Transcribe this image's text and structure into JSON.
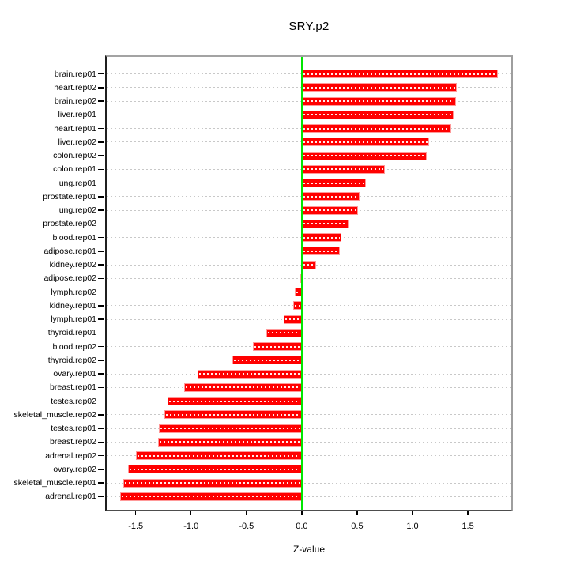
{
  "chart_data": {
    "type": "bar",
    "orientation": "horizontal",
    "title": "SRY.p2",
    "xlabel": "Z-value",
    "ylabel": "",
    "legend": "none",
    "grid": "horizontal-dotted",
    "categories": [
      "brain.rep01",
      "heart.rep02",
      "brain.rep02",
      "liver.rep01",
      "heart.rep01",
      "liver.rep02",
      "colon.rep02",
      "colon.rep01",
      "lung.rep01",
      "prostate.rep01",
      "lung.rep02",
      "prostate.rep02",
      "blood.rep01",
      "adipose.rep01",
      "kidney.rep02",
      "adipose.rep02",
      "lymph.rep02",
      "kidney.rep01",
      "lymph.rep01",
      "thyroid.rep01",
      "blood.rep02",
      "thyroid.rep02",
      "ovary.rep01",
      "breast.rep01",
      "testes.rep02",
      "skeletal_muscle.rep02",
      "testes.rep01",
      "breast.rep02",
      "adrenal.rep02",
      "ovary.rep02",
      "skeletal_muscle.rep01",
      "adrenal.rep01"
    ],
    "values": [
      1.77,
      1.4,
      1.39,
      1.37,
      1.35,
      1.15,
      1.13,
      0.75,
      0.58,
      0.52,
      0.51,
      0.42,
      0.36,
      0.34,
      0.13,
      -0.01,
      -0.06,
      -0.08,
      -0.16,
      -0.32,
      -0.44,
      -0.63,
      -0.94,
      -1.06,
      -1.21,
      -1.24,
      -1.29,
      -1.3,
      -1.5,
      -1.57,
      -1.61,
      -1.64
    ],
    "xlim": [
      -1.776,
      1.906
    ],
    "xtick_values": [
      -1.5,
      -1.0,
      -0.5,
      0.0,
      0.5,
      1.0,
      1.5
    ],
    "xtick_labels": [
      "-1.5",
      "-1.0",
      "-0.5",
      "0.0",
      "0.5",
      "1.0",
      "1.5"
    ],
    "colors": {
      "bar_fill": "#ff0000",
      "bar_border": "#ff9999",
      "bar_inner_dashes": "#ffffff",
      "zero_line": "#00e600",
      "grid_line": "#c8c8c8",
      "frame": "#9e9e9e",
      "axis_text": "#000000"
    }
  }
}
